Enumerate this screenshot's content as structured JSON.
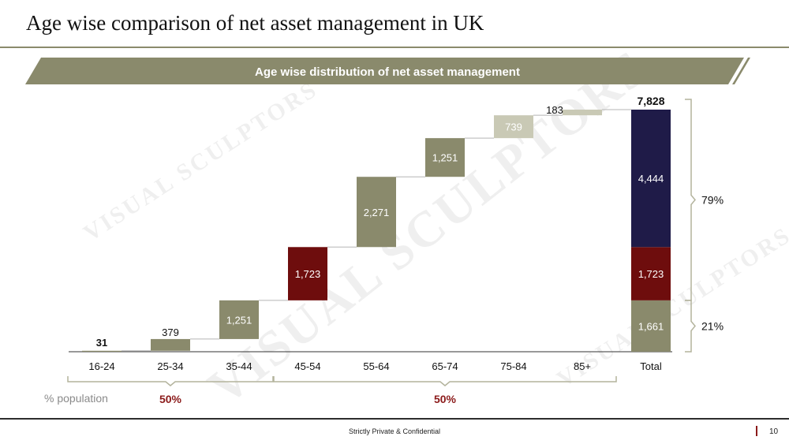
{
  "page": {
    "title": "Age wise comparison of net asset management in UK",
    "footer": "Strictly Private & Confidential",
    "page_number": "10",
    "watermark": "VISUAL SCULPTORS"
  },
  "colors": {
    "banner": "#8a8a6c",
    "olive": "#8a8a6c",
    "light_olive": "#c9c9b5",
    "dark_red": "#6e0d0d",
    "navy": "#1f1b48",
    "highlight_red": "#8b1a1a"
  },
  "chart_data": {
    "type": "waterfall",
    "title": "Age wise distribution of net asset management",
    "categories": [
      "16-24",
      "25-34",
      "35-44",
      "45-54",
      "55-64",
      "65-74",
      "75-84",
      "85+"
    ],
    "values": [
      31,
      379,
      1251,
      1723,
      2271,
      1251,
      739,
      183
    ],
    "value_labels": [
      "31",
      "379",
      "1,251",
      "1,723",
      "2,271",
      "1,251",
      "739",
      "183"
    ],
    "bar_colors": [
      "#8a8a6c",
      "#8a8a6c",
      "#8a8a6c",
      "#6e0d0d",
      "#8a8a6c",
      "#8a8a6c",
      "#c9c9b5",
      "#c9c9b5"
    ],
    "total": {
      "label": "Total",
      "value": 7828,
      "value_label": "7,828",
      "segments": [
        {
          "value": 1661,
          "label": "1,661",
          "color": "#8a8a6c"
        },
        {
          "value": 1723,
          "label": "1,723",
          "color": "#6e0d0d"
        },
        {
          "value": 4444,
          "label": "4,444",
          "color": "#1f1b48"
        }
      ]
    },
    "brackets": [
      {
        "label": "79%",
        "segments": [
          1,
          2
        ]
      },
      {
        "label": "21%",
        "segments": [
          0
        ]
      }
    ],
    "population": {
      "label": "% population",
      "groups": [
        {
          "from": 0,
          "to": 2,
          "label": "50%"
        },
        {
          "from": 3,
          "to": 7,
          "label": "50%"
        }
      ]
    },
    "ylim": [
      0,
      7828
    ],
    "grid": false
  }
}
